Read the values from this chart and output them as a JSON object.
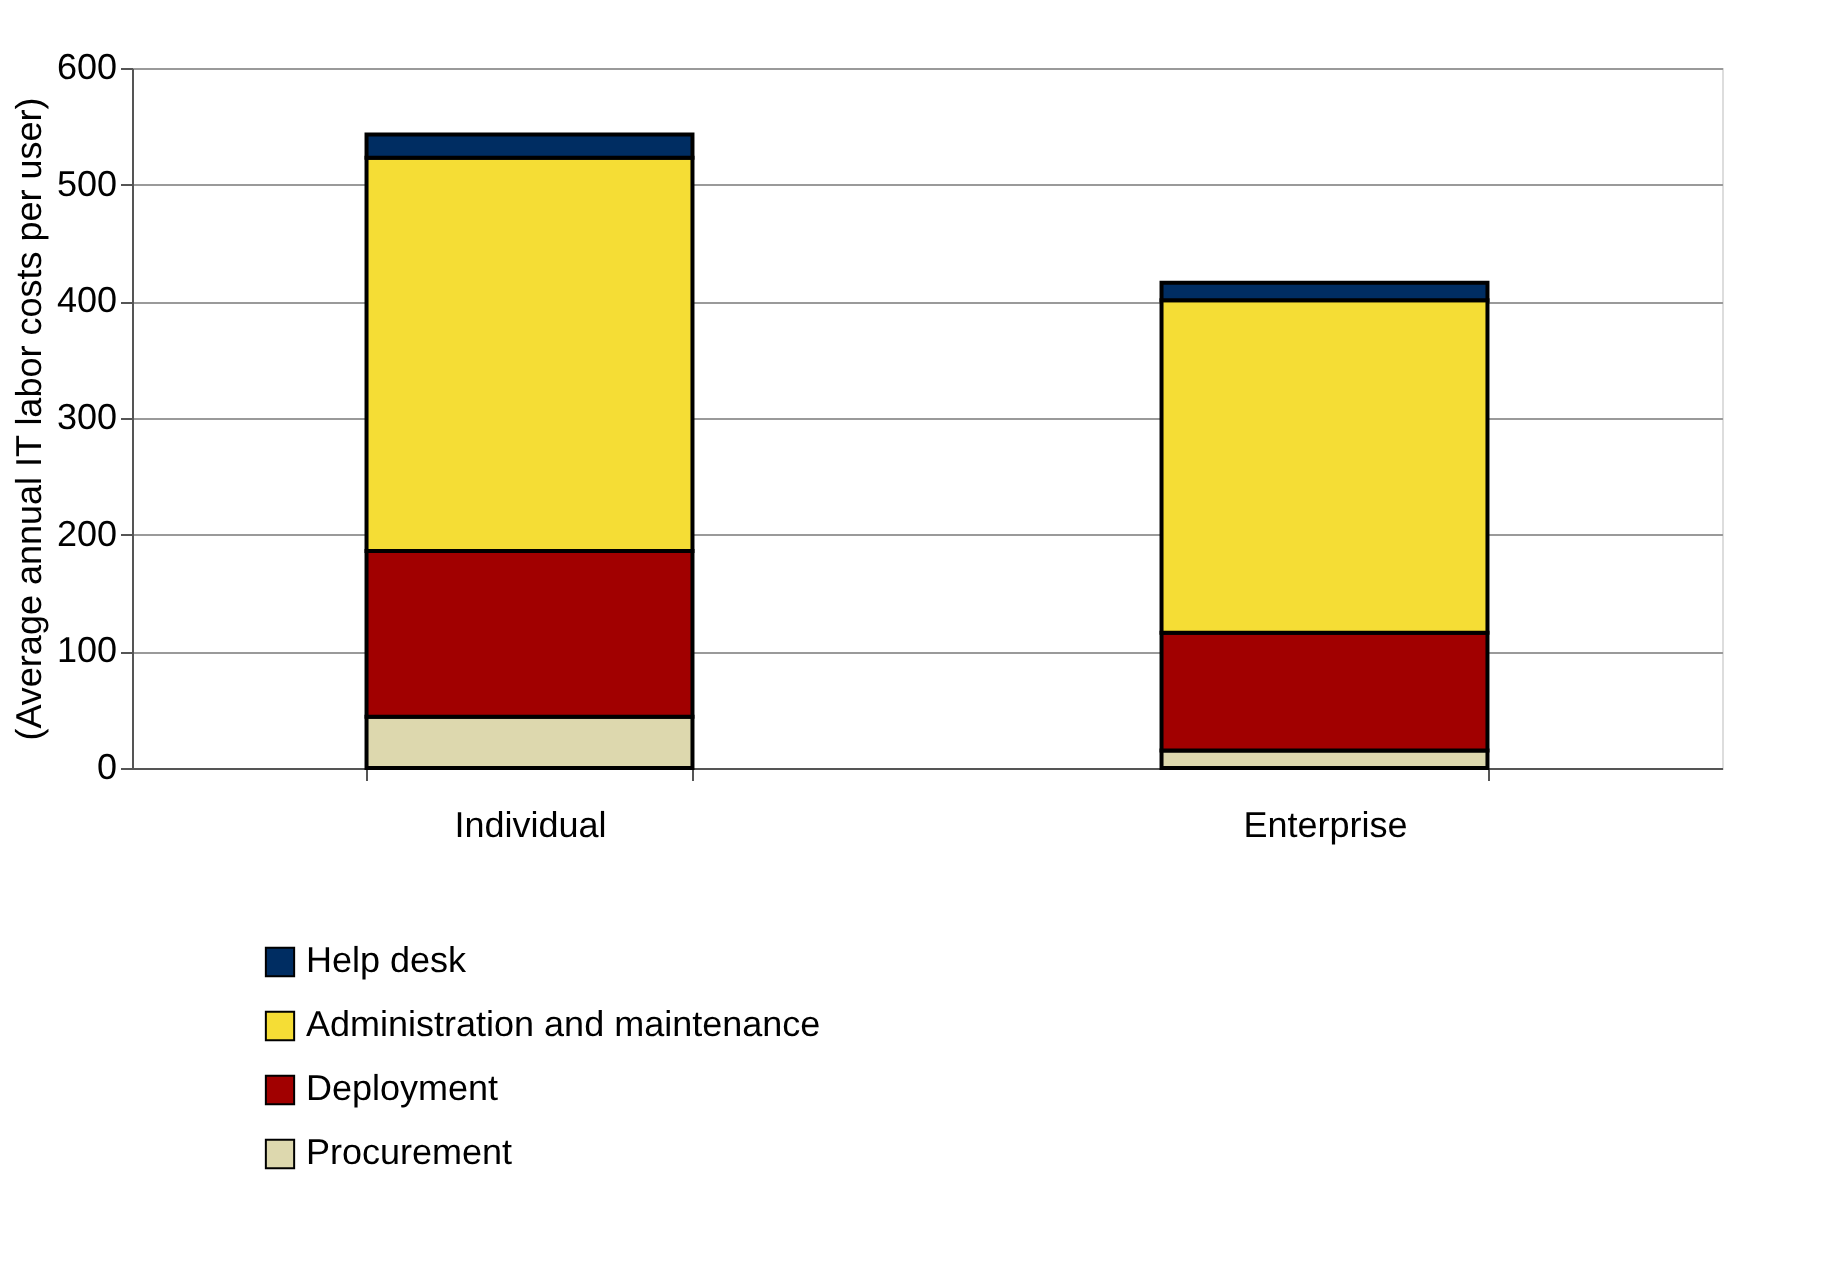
{
  "chart_data": {
    "type": "bar",
    "stacked": true,
    "ylabel": "(Average annual IT labor costs per user)",
    "categories": [
      "Individual",
      "Enterprise"
    ],
    "series": [
      {
        "name": "Procurement",
        "color": "#ddd8ae",
        "values": [
          44,
          15
        ]
      },
      {
        "name": "Deployment",
        "color": "#a10000",
        "values": [
          142,
          101
        ]
      },
      {
        "name": "Administration and maintenance",
        "color": "#f5dd35",
        "values": [
          337,
          285
        ]
      },
      {
        "name": "Help desk",
        "color": "#002d62",
        "values": [
          20,
          15
        ]
      }
    ],
    "ylim": [
      0,
      600
    ],
    "yticks": [
      0,
      100,
      200,
      300,
      400,
      500,
      600
    ],
    "grid": "y",
    "legend": "bottom"
  }
}
